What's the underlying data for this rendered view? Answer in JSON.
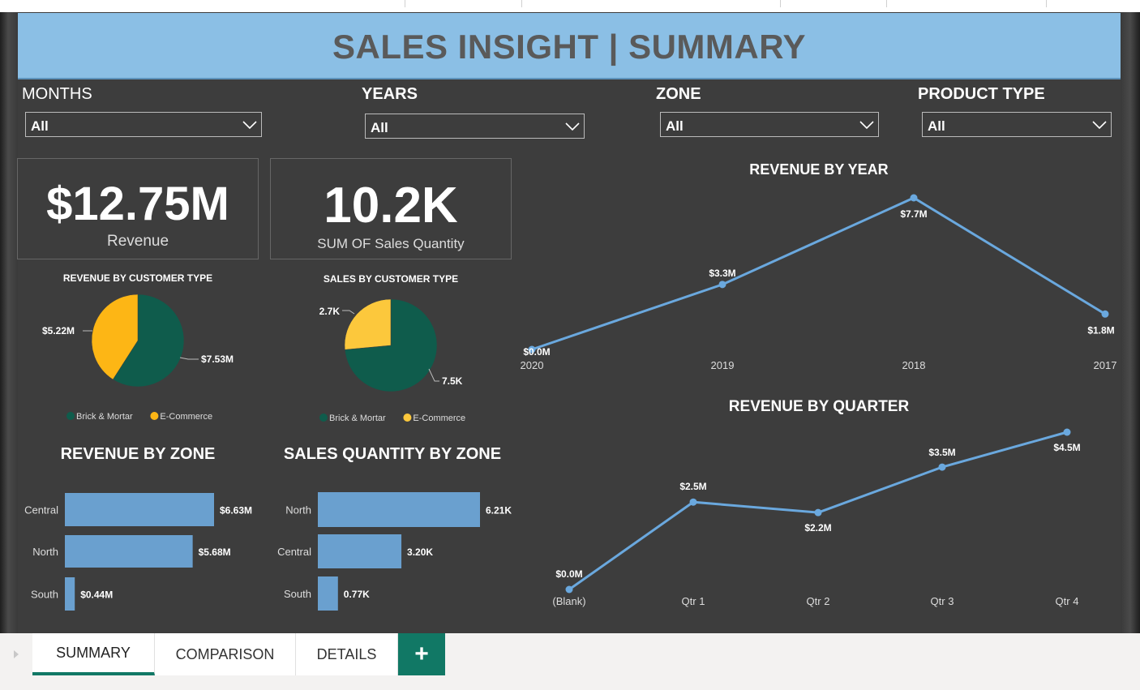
{
  "banner": {
    "title": "SALES INSIGHT | SUMMARY"
  },
  "slicers": [
    {
      "label": "MONTHS",
      "value": "All"
    },
    {
      "label": "YEARS",
      "value": "All"
    },
    {
      "label": "ZONE",
      "value": "All"
    },
    {
      "label": "PRODUCT TYPE",
      "value": "All"
    }
  ],
  "cards": {
    "revenue": {
      "value": "$12.75M",
      "label": "Revenue"
    },
    "quantity": {
      "value": "10.2K",
      "label": "SUM OF Sales Quantity"
    }
  },
  "tabs": {
    "items": [
      "SUMMARY",
      "COMPARISON",
      "DETAILS"
    ],
    "active": "SUMMARY",
    "add_label": "+"
  },
  "colors": {
    "brick": "#0f5c4c",
    "ecommerce": "#fdb615",
    "ecommerce_light": "#fcc83c",
    "bar": "#6aa0cf",
    "line": "#6aa8de",
    "banner": "#8bbfe5",
    "canvas": "#3d3d3d",
    "tab_accent": "#117865"
  },
  "chart_data": [
    {
      "type": "line",
      "title": "REVENUE BY YEAR",
      "x": [
        "2020",
        "2019",
        "2018",
        "2017"
      ],
      "series": [
        {
          "values": [
            0.0,
            3.3,
            7.7,
            1.8
          ]
        }
      ],
      "data_labels": [
        "$0.0M",
        "$3.3M",
        "$7.7M",
        "$1.8M"
      ],
      "ylim": [
        0,
        7.7
      ]
    },
    {
      "type": "line",
      "title": "REVENUE BY QUARTER",
      "x": [
        "(Blank)",
        "Qtr 1",
        "Qtr 2",
        "Qtr 3",
        "Qtr 4"
      ],
      "series": [
        {
          "values": [
            0.0,
            2.5,
            2.2,
            3.5,
            4.5
          ]
        }
      ],
      "data_labels": [
        "$0.0M",
        "$2.5M",
        "$2.2M",
        "$3.5M",
        "$4.5M"
      ],
      "ylim": [
        0,
        4.5
      ]
    },
    {
      "type": "pie",
      "title": "REVENUE BY CUSTOMER TYPE",
      "categories": [
        "Brick & Mortar",
        "E-Commerce"
      ],
      "values": [
        7.53,
        5.22
      ],
      "data_labels": [
        "$7.53M",
        "$5.22M"
      ],
      "legend": "bottom"
    },
    {
      "type": "pie",
      "title": "SALES BY CUSTOMER TYPE",
      "categories": [
        "Brick & Mortar",
        "E-Commerce"
      ],
      "values": [
        7.5,
        2.7
      ],
      "data_labels": [
        "7.5K",
        "2.7K"
      ],
      "legend": "bottom"
    },
    {
      "type": "bar",
      "title": "REVENUE BY ZONE",
      "categories": [
        "Central",
        "North",
        "South"
      ],
      "values": [
        6.63,
        5.68,
        0.44
      ],
      "data_labels": [
        "$6.63M",
        "$5.68M",
        "$0.44M"
      ]
    },
    {
      "type": "bar",
      "title": "SALES QUANTITY BY ZONE",
      "categories": [
        "North",
        "Central",
        "South"
      ],
      "values": [
        6.21,
        3.2,
        0.77
      ],
      "data_labels": [
        "6.21K",
        "3.20K",
        "0.77K"
      ]
    }
  ]
}
